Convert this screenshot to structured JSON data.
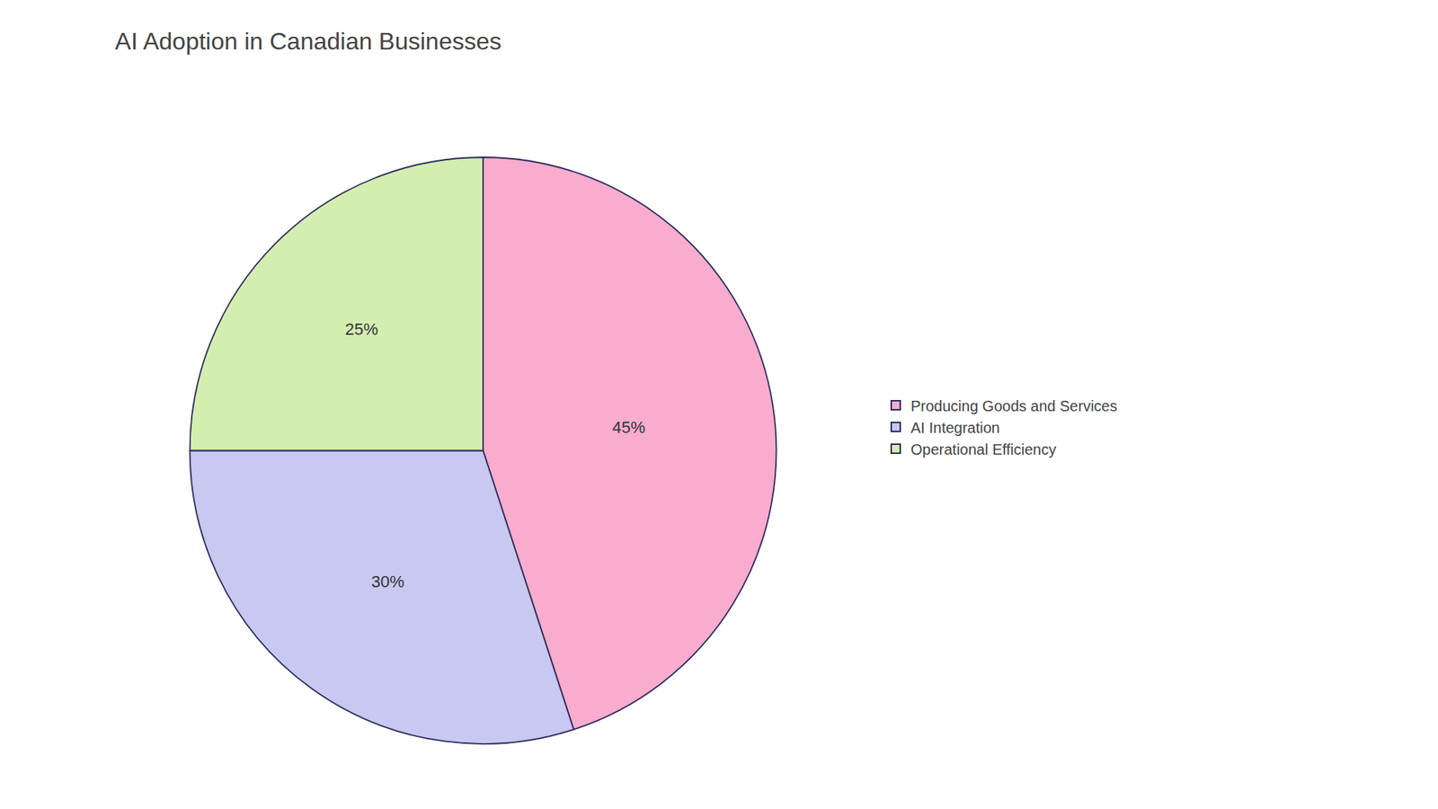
{
  "chart_data": {
    "type": "pie",
    "title": "AI Adoption in Canadian Businesses",
    "categories": [
      "Producing Goods and Services",
      "AI Integration",
      "Operational Efficiency"
    ],
    "values": [
      45,
      30,
      25
    ],
    "value_labels": [
      "45%",
      "30%",
      "25%"
    ],
    "colors": [
      "#F9ACCD",
      "#C8C8F0",
      "#D4EEB0"
    ],
    "data_labels": true,
    "legend": "right"
  }
}
